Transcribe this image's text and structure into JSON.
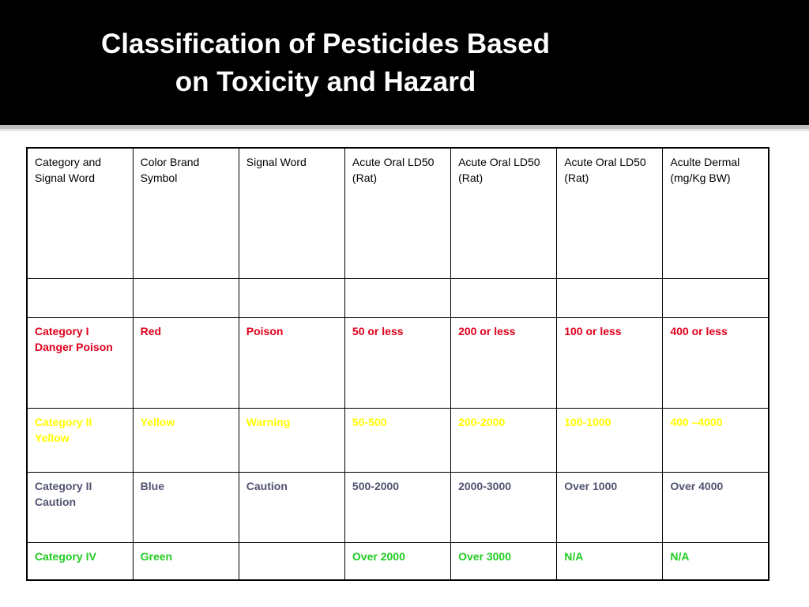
{
  "slide": {
    "title_line1": "Classification of Pesticides Based",
    "title_line2": "on Toxicity and Hazard"
  },
  "colors": {
    "category_1": "#e0001b",
    "category_2": "#ffff00",
    "category_3": "#4f5370",
    "category_4": "#22cc22"
  },
  "table": {
    "headers": [
      "Category and Signal Word",
      "Color Brand Symbol",
      "Signal Word",
      "Acute Oral LD50 (Rat)",
      "Acute Oral LD50 (Rat)",
      "Acute Oral LD50 (Rat)",
      "Aculte Dermal (mg/Kg BW)"
    ],
    "blank_row": [
      "",
      "",
      "",
      "",
      "",
      "",
      ""
    ],
    "rows": [
      {
        "color": "#e0001b",
        "cells": [
          "Category I Danger Poison",
          "Red",
          "Poison",
          "50 or less",
          "200 or less",
          "100 or less",
          "400 or less"
        ]
      },
      {
        "color": "#ffff00",
        "cells": [
          "Category II Yellow",
          "Yellow",
          "Warning",
          "50-500",
          "200-2000",
          "100-1000",
          "400 –4000"
        ]
      },
      {
        "color": "#4f5370",
        "cells": [
          "Category II Caution",
          "Blue",
          "Caution",
          "500-2000",
          "2000-3000",
          "Over 1000",
          "Over 4000"
        ]
      },
      {
        "color": "#22cc22",
        "cells": [
          "Category IV",
          "Green",
          "",
          "Over 2000",
          "Over 3000",
          "N/A",
          "N/A"
        ]
      }
    ]
  }
}
